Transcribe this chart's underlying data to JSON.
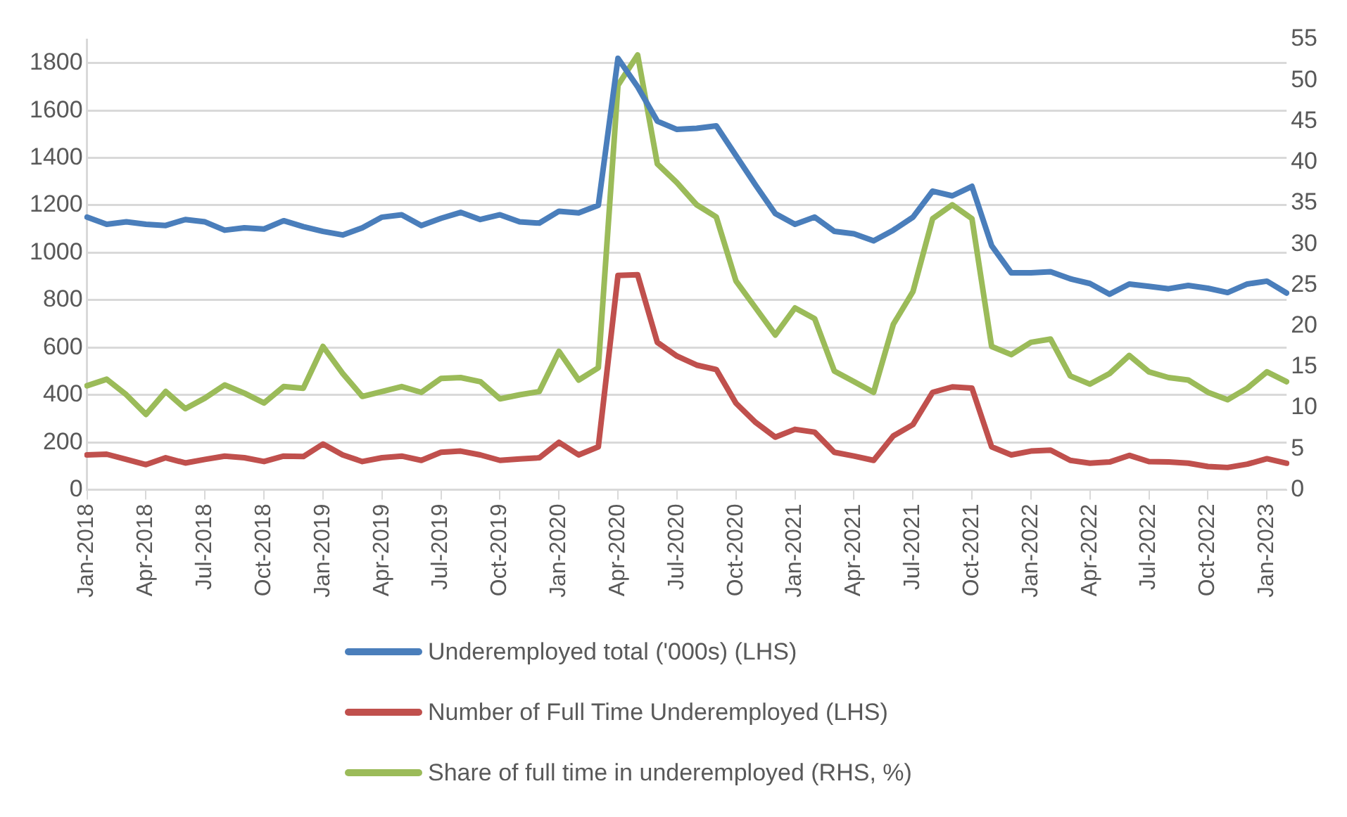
{
  "chart_data": {
    "type": "line",
    "categories": [
      "Jan-2018",
      null,
      null,
      "Apr-2018",
      null,
      null,
      "Jul-2018",
      null,
      null,
      "Oct-2018",
      null,
      null,
      "Jan-2019",
      null,
      null,
      "Apr-2019",
      null,
      null,
      "Jul-2019",
      null,
      null,
      "Oct-2019",
      null,
      null,
      "Jan-2020",
      null,
      null,
      "Apr-2020",
      null,
      null,
      "Jul-2020",
      null,
      null,
      "Oct-2020",
      null,
      null,
      "Jan-2021",
      null,
      null,
      "Apr-2021",
      null,
      null,
      "Jul-2021",
      null,
      null,
      "Oct-2021",
      null,
      null,
      "Jan-2022",
      null,
      null,
      "Apr-2022",
      null,
      null,
      "Jul-2022",
      null,
      null,
      "Oct-2022",
      null,
      null,
      "Jan-2023",
      null
    ],
    "series": [
      {
        "name": "Underemployed total ('000s) (LHS)",
        "color": "#4a7ebb",
        "values": [
          1150,
          1120,
          1130,
          1120,
          1115,
          1140,
          1130,
          1095,
          1105,
          1100,
          1135,
          1110,
          1090,
          1075,
          1105,
          1150,
          1160,
          1115,
          1145,
          1170,
          1140,
          1160,
          1130,
          1125,
          1175,
          1168,
          1200,
          1820,
          1700,
          1555,
          1520,
          1525,
          1535,
          1410,
          1285,
          1165,
          1120,
          1150,
          1090,
          1080,
          1050,
          1095,
          1150,
          1260,
          1240,
          1280,
          1030,
          915,
          915,
          920,
          890,
          870,
          825,
          868,
          858,
          848,
          862,
          850,
          832,
          868,
          880,
          830
        ]
      },
      {
        "name": "Number of Full Time Underemployed (LHS)",
        "color": "#c0504d",
        "values": [
          147,
          150,
          128,
          106,
          135,
          113,
          128,
          142,
          135,
          119,
          142,
          140,
          193,
          147,
          119,
          135,
          142,
          124,
          158,
          163,
          147,
          124,
          130,
          135,
          200,
          147,
          181,
          904,
          907,
          622,
          564,
          526,
          507,
          365,
          284,
          222,
          255,
          243,
          158,
          142,
          124,
          227,
          275,
          411,
          434,
          429,
          181,
          147,
          163,
          167,
          124,
          112,
          117,
          145,
          119,
          117,
          112,
          98,
          94,
          108,
          131,
          112
        ]
      },
      {
        "name": "Share of full time in underemployed (RHS, %)",
        "color": "#9bbb59",
        "axis": "y2",
        "values": [
          12.7,
          13.5,
          11.6,
          9.2,
          12.0,
          9.9,
          11.2,
          12.8,
          11.8,
          10.6,
          12.6,
          12.4,
          17.5,
          14.2,
          11.4,
          12.0,
          12.6,
          11.9,
          13.6,
          13.7,
          13.2,
          11.1,
          11.6,
          12.0,
          16.9,
          13.4,
          14.9,
          49.4,
          53.1,
          39.8,
          37.5,
          34.8,
          33.3,
          25.5,
          22.2,
          18.9,
          22.2,
          20.9,
          14.5,
          13.2,
          11.9,
          20.2,
          24.2,
          33.1,
          34.8,
          33.1,
          17.5,
          16.5,
          18.0,
          18.4,
          13.9,
          12.9,
          14.2,
          16.4,
          14.4,
          13.7,
          13.4,
          11.9,
          11.0,
          12.4,
          14.4,
          13.2
        ]
      }
    ],
    "ylim": [
      0,
      1900
    ],
    "yticks": [
      0,
      200,
      400,
      600,
      800,
      1000,
      1200,
      1400,
      1600,
      1800
    ],
    "y2lim": [
      0,
      55
    ],
    "y2ticks": [
      0,
      5,
      10,
      15,
      20,
      25,
      30,
      35,
      40,
      45,
      50,
      55
    ],
    "grid": "y",
    "legend": "bottom",
    "marker": "none",
    "line_style": "solid"
  }
}
